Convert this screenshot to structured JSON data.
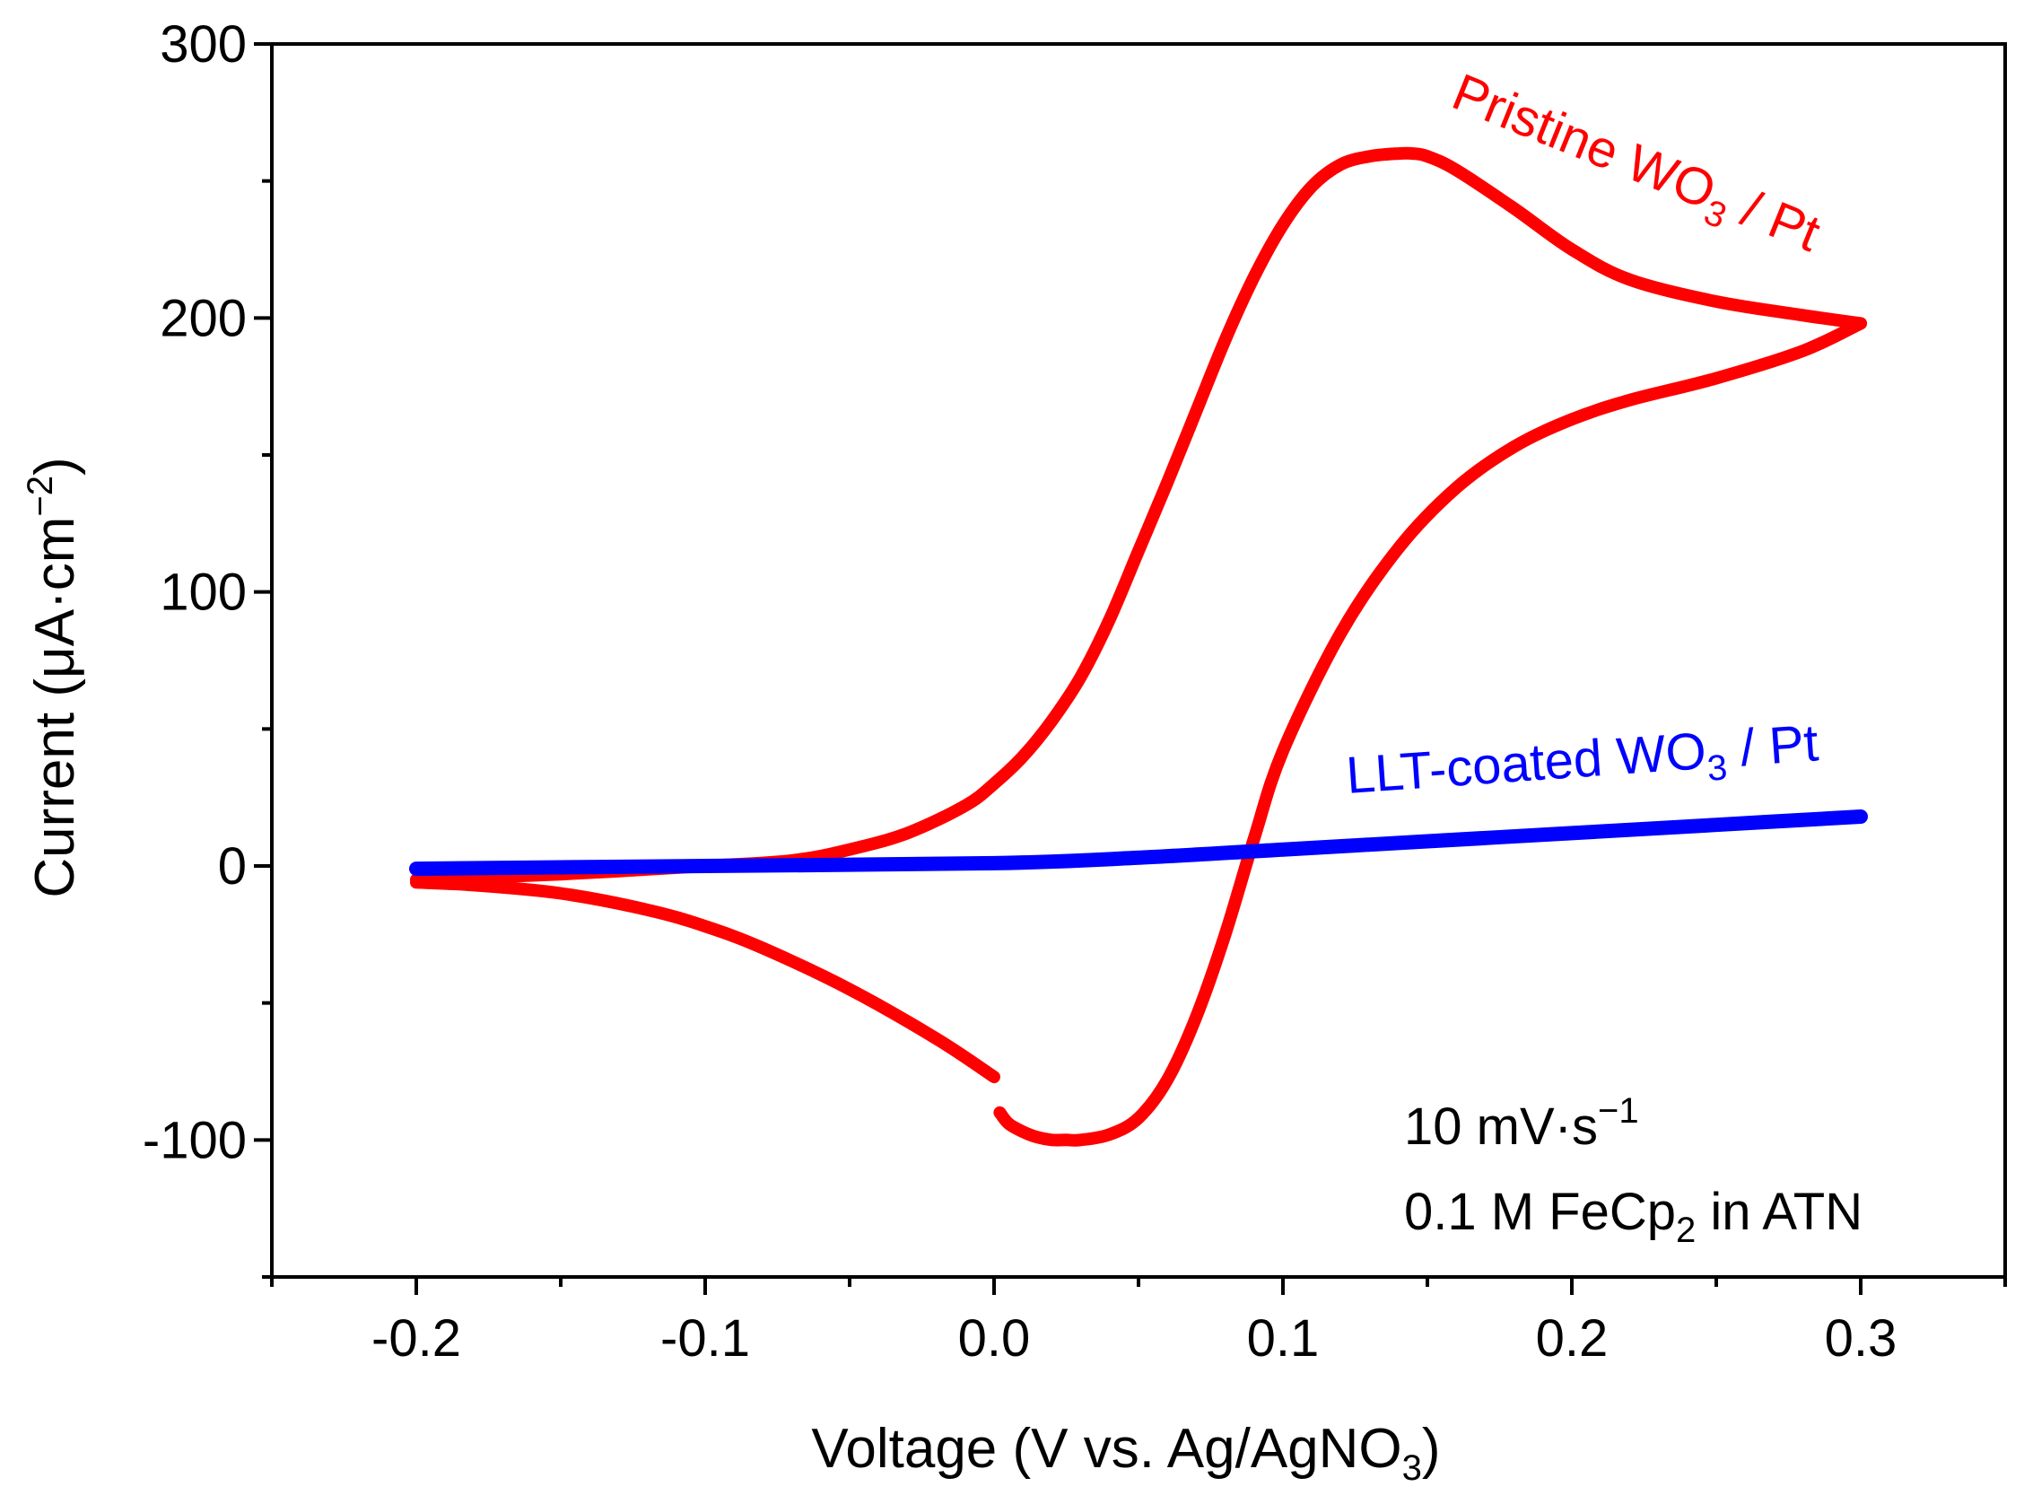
{
  "chart_data": {
    "type": "line",
    "title": "",
    "xlabel": {
      "main": "Voltage (V vs. Ag/AgNO",
      "sub": "3",
      "tail": ")"
    },
    "ylabel": {
      "main": "Current (μA·cm",
      "sup": "−2",
      "tail": ")"
    },
    "xlim": [
      -0.25,
      0.35
    ],
    "ylim": [
      -150,
      300
    ],
    "xticks": [
      -0.2,
      -0.1,
      0.0,
      0.1,
      0.2,
      0.3
    ],
    "xtick_labels": [
      "-0.2",
      "-0.1",
      "0.0",
      "0.1",
      "0.2",
      "0.3"
    ],
    "yticks": [
      -100,
      0,
      100,
      200,
      300
    ],
    "ytick_labels": [
      "-100",
      "0",
      "100",
      "200",
      "300"
    ],
    "grid": false,
    "series": [
      {
        "name": "Pristine WO3 / Pt",
        "color": "#ff0000",
        "segments": [
          {
            "x": [
              -0.2,
              -0.15,
              -0.1,
              -0.07,
              -0.05,
              -0.03,
              -0.01,
              0.0,
              0.01,
              0.02,
              0.03,
              0.04,
              0.05,
              0.06,
              0.07,
              0.08,
              0.09,
              0.1,
              0.11,
              0.12,
              0.13,
              0.14,
              0.145,
              0.15,
              0.16,
              0.18,
              0.2,
              0.22,
              0.25,
              0.28,
              0.3
            ],
            "y": [
              -5,
              -3,
              0,
              2,
              6,
              12,
              22,
              30,
              40,
              53,
              69,
              90,
              115,
              140,
              166,
              192,
              215,
              234,
              248,
              256,
              259,
              260,
              260,
              259,
              254,
              240,
              225,
              214,
              206,
              201,
              198
            ]
          },
          {
            "x": [
              0.3,
              0.28,
              0.25,
              0.22,
              0.2,
              0.18,
              0.16,
              0.14,
              0.12,
              0.1,
              0.09,
              0.08,
              0.07,
              0.06,
              0.05,
              0.04,
              0.03,
              0.025,
              0.02,
              0.015,
              0.01,
              0.005,
              0.002
            ],
            "y": [
              198,
              188,
              178,
              170,
              163,
              153,
              138,
              116,
              85,
              42,
              10,
              -25,
              -55,
              -78,
              -92,
              -98,
              -100,
              -100,
              -100,
              -99,
              -97,
              -94,
              -90
            ]
          },
          {
            "x": [
              0.0,
              -0.02,
              -0.05,
              -0.08,
              -0.1,
              -0.12,
              -0.15,
              -0.18,
              -0.2
            ],
            "y": [
              -77,
              -63,
              -45,
              -30,
              -22,
              -16,
              -10,
              -7,
              -6
            ]
          }
        ]
      },
      {
        "name": "LLT-coated WO3 / Pt",
        "color": "#0000ff",
        "segments": [
          {
            "x": [
              -0.2,
              -0.1,
              0.0,
              0.05,
              0.1,
              0.15,
              0.2,
              0.25,
              0.3
            ],
            "y": [
              -1,
              0,
              1,
              3,
              6,
              9,
              12,
              15,
              18
            ]
          }
        ]
      }
    ],
    "annotations": {
      "pristine": {
        "pre": "Pristine WO",
        "sub": "3",
        "post": " / Pt",
        "color": "#ff0000"
      },
      "llt": {
        "pre": "LLT-coated WO",
        "sub": "3",
        "post": " / Pt",
        "color": "#0000ff"
      },
      "rate": {
        "pre": "10 mV·s",
        "sup": "−1",
        "color": "#000000"
      },
      "solution": {
        "pre": "0.1 M FeCp",
        "sub": "2",
        "post": " in ATN",
        "color": "#000000"
      }
    }
  }
}
